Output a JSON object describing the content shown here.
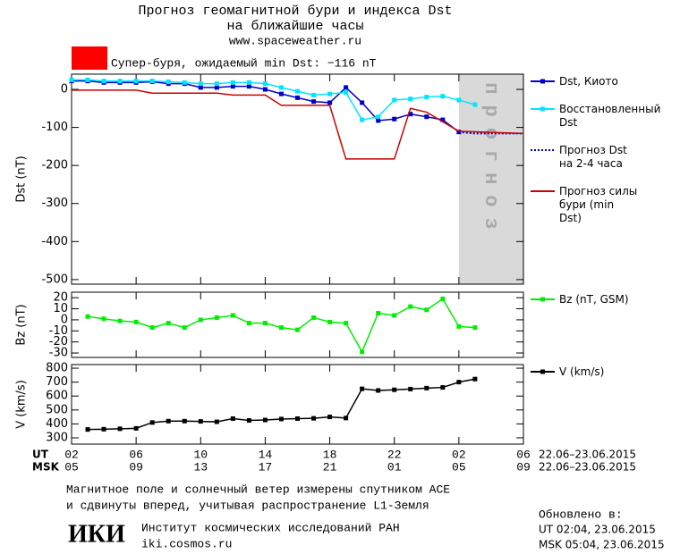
{
  "header": {
    "title": "Прогноз геомагнитной бури и индекса Dst",
    "subtitle": "на ближайшие часы",
    "url": "www.spaceweather.ru"
  },
  "alert": {
    "color": "#ff0000",
    "text": "Супер-буря, ожидаемый min Dst: −116 nT"
  },
  "chart_data": [
    {
      "type": "line",
      "ylabel": "Dst (nT)",
      "xlim": [
        0,
        28
      ],
      "xticks": [
        0,
        4,
        8,
        12,
        16,
        20,
        24,
        28
      ],
      "ylim": [
        -512,
        40
      ],
      "yticks": [
        0,
        -100,
        -200,
        -300,
        -400,
        -500
      ],
      "shade": {
        "x": [
          24,
          28
        ],
        "color": "#d9d9d9",
        "label": "прогноз"
      },
      "series": [
        {
          "name": "Dst, Киото",
          "color": "#0000cc",
          "marker": "square",
          "x": [
            0,
            1,
            2,
            3,
            4,
            5,
            6,
            7,
            8,
            9,
            10,
            11,
            12,
            13,
            14,
            15,
            16,
            17,
            18,
            19,
            20,
            21,
            22,
            23,
            24
          ],
          "values": [
            22,
            22,
            18,
            18,
            18,
            20,
            15,
            15,
            5,
            5,
            8,
            8,
            0,
            -12,
            -22,
            -32,
            -35,
            5,
            -35,
            -82,
            -78,
            -65,
            -72,
            -80,
            -112
          ]
        },
        {
          "name": "Восстановленный Dst",
          "color": "#00e5ff",
          "marker": "square",
          "x": [
            0,
            1,
            2,
            3,
            4,
            5,
            6,
            7,
            8,
            9,
            10,
            11,
            12,
            13,
            14,
            15,
            16,
            17,
            18,
            19,
            20,
            21,
            22,
            23,
            24,
            25
          ],
          "values": [
            25,
            25,
            22,
            22,
            22,
            22,
            20,
            18,
            15,
            15,
            18,
            18,
            15,
            5,
            -5,
            -15,
            -12,
            -8,
            -80,
            -72,
            -28,
            -25,
            -20,
            -18,
            -28,
            -40
          ]
        },
        {
          "name": "Прогноз Dst на 2-4 часа",
          "color": "#0000cc",
          "dash": true,
          "x": [
            24,
            25,
            28
          ],
          "values": [
            -112,
            -116,
            -116
          ]
        },
        {
          "name": "Прогноз силы бури (min Dst)",
          "color": "#cc0000",
          "x": [
            0,
            4,
            5,
            9,
            10,
            12,
            13,
            16,
            17,
            20,
            21,
            22,
            24,
            28
          ],
          "values": [
            -2,
            -2,
            -10,
            -10,
            -15,
            -15,
            -42,
            -42,
            -183,
            -183,
            -50,
            -60,
            -110,
            -116
          ]
        }
      ]
    },
    {
      "type": "line",
      "ylabel": "Bz (nT)",
      "xlim": [
        0,
        28
      ],
      "xticks": [
        0,
        4,
        8,
        12,
        16,
        20,
        24,
        28
      ],
      "ylim": [
        -34,
        25
      ],
      "yticks": [
        20,
        10,
        0,
        -10,
        -20,
        -30
      ],
      "series": [
        {
          "name": "Bz (nT, GSM)",
          "color": "#00ee00",
          "marker": "square",
          "x": [
            1,
            2,
            3,
            4,
            5,
            6,
            7,
            8,
            9,
            10,
            11,
            12,
            13,
            14,
            15,
            16,
            17,
            18,
            19,
            20,
            21,
            22,
            23,
            24,
            25
          ],
          "values": [
            3,
            1,
            -1,
            -2,
            -7,
            -3,
            -7,
            0,
            2,
            4,
            -3,
            -3,
            -7,
            -9,
            2,
            -2,
            -3,
            -29,
            6,
            4,
            12,
            9,
            19,
            -6,
            -7
          ]
        }
      ]
    },
    {
      "type": "line",
      "ylabel": "V (km/s)",
      "xlim": [
        0,
        28
      ],
      "xticks": [
        {
          "value": 0,
          "label": "02"
        },
        {
          "value": 4,
          "label": "06"
        },
        {
          "value": 8,
          "label": "10"
        },
        {
          "value": 12,
          "label": "14"
        },
        {
          "value": 16,
          "label": "18"
        },
        {
          "value": 20,
          "label": "22"
        },
        {
          "value": 24,
          "label": "02"
        },
        {
          "value": 28,
          "label": "06"
        }
      ],
      "msk_ticks": [
        "05",
        "09",
        "13",
        "17",
        "21",
        "01",
        "05",
        "09"
      ],
      "x_row_labels": [
        "UT",
        "MSK"
      ],
      "x_date_range": "22.06–23.06.2015",
      "ylim": [
        255,
        826
      ],
      "yticks": [
        800,
        700,
        600,
        500,
        400,
        300
      ],
      "series": [
        {
          "name": "V (km/s)",
          "color": "#000000",
          "marker": "square",
          "x": [
            1,
            2,
            3,
            4,
            5,
            6,
            7,
            8,
            9,
            10,
            11,
            12,
            13,
            14,
            15,
            16,
            17,
            18,
            19,
            20,
            21,
            22,
            23,
            24,
            25
          ],
          "values": [
            360,
            362,
            365,
            368,
            410,
            420,
            420,
            418,
            415,
            438,
            425,
            428,
            435,
            438,
            440,
            450,
            442,
            652,
            640,
            645,
            650,
            657,
            662,
            700,
            722
          ]
        }
      ]
    }
  ],
  "footer": {
    "note1": "Магнитное поле и солнечный ветер измерены спутником ACE",
    "note2": "и сдвинуты вперед, учитывая распространение L1-Земля",
    "logo": "ИКИ",
    "institute": "Институт космических исследований РАН",
    "site": "iki.cosmos.ru",
    "updated": "Обновлено в:",
    "updated_ut": "UT  02:04, 23.06.2015",
    "updated_msk": "MSK 05:04, 23.06.2015"
  }
}
